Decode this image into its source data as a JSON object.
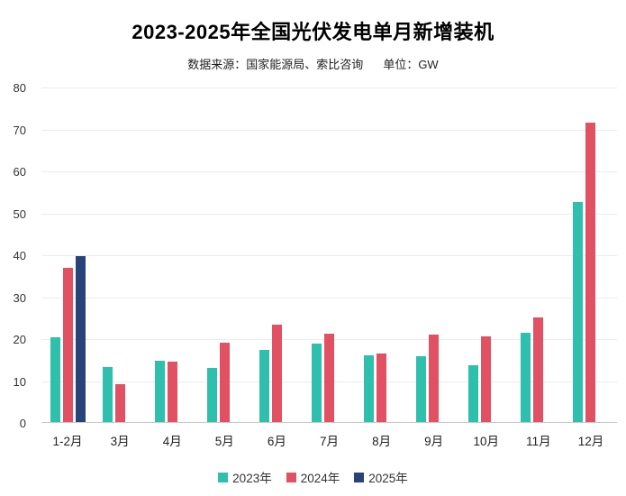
{
  "header": {
    "title": "2023-2025年全国光伏发电单月新增装机",
    "source_label": "数据来源：国家能源局、索比咨询",
    "unit_label": "单位：GW"
  },
  "chart_data": {
    "type": "bar",
    "title": "2023-2025年全国光伏发电单月新增装机",
    "unit": "GW",
    "categories": [
      "1-2月",
      "3月",
      "4月",
      "5月",
      "6月",
      "7月",
      "8月",
      "9月",
      "10月",
      "11月",
      "12月"
    ],
    "series": [
      {
        "name": "2023年",
        "color": "#2FBFAD",
        "values": [
          20.3,
          13.2,
          14.6,
          12.8,
          17.2,
          18.7,
          15.9,
          15.7,
          13.6,
          21.2,
          52.5
        ]
      },
      {
        "name": "2024年",
        "color": "#E25064",
        "values": [
          36.7,
          9.0,
          14.4,
          19.0,
          23.3,
          21.1,
          16.4,
          20.9,
          20.4,
          25.0,
          71.3
        ]
      },
      {
        "name": "2025年",
        "color": "#28427A",
        "values": [
          39.5,
          null,
          null,
          null,
          null,
          null,
          null,
          null,
          null,
          null,
          null
        ]
      }
    ],
    "ylabel": "",
    "xlabel": "",
    "ylim": [
      0,
      80
    ],
    "ytick_interval": 10,
    "grid": true,
    "legend_position": "bottom"
  },
  "legend": {
    "items": [
      {
        "label": "2023年",
        "color": "#2FBFAD"
      },
      {
        "label": "2024年",
        "color": "#E25064"
      },
      {
        "label": "2025年",
        "color": "#28427A"
      }
    ]
  },
  "colors": {
    "background": "#FFFFFF",
    "gridline": "#ECECEC",
    "axis_line": "#C9C9C9",
    "title_text": "#000000",
    "subtitle_text": "#1F1F1F",
    "axis_text": "#333333",
    "series_2023": "#2FBFAD",
    "series_2024": "#E25064",
    "series_2025": "#28427A"
  }
}
